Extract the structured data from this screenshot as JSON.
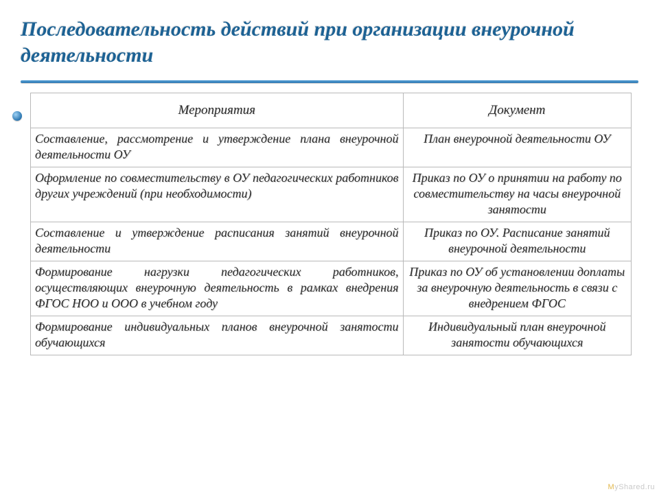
{
  "title": "Последовательность действий при организации внеурочной деятельности",
  "table": {
    "columns": [
      "Мероприятия",
      "Документ"
    ],
    "col_widths_pct": [
      62,
      38
    ],
    "rows": [
      [
        "Составление, рассмотрение и утверждение плана внеурочной деятельности ОУ",
        "План внеурочной деятельности ОУ"
      ],
      [
        "Оформление по совместительству в ОУ педагогических работников других учреждений (при необходимости)",
        "Приказ по ОУ о принятии на работу по совместительству на часы внеурочной занятости"
      ],
      [
        "Составление и утверждение расписания занятий внеурочной деятельности",
        "Приказ по ОУ. Расписание занятий внеурочной деятельности"
      ],
      [
        "Формирование нагрузки педагогических работников, осуществляющих внеурочную деятельность в рамках внедрения ФГОС НОО и ООО в учебном году",
        "Приказ по ОУ об установлении доплаты за внеурочную деятельность в связи с внедрением ФГОС"
      ],
      [
        "Формирование индивидуальных планов внеурочной занятости обучающихся",
        "Индивидуальный план внеурочной занятости обучающихся"
      ]
    ],
    "header_fontsize": 19,
    "cell_fontsize": 18,
    "border_color": "#b8b8b8",
    "text_color": "#2a2a2a",
    "font_style": "italic"
  },
  "colors": {
    "title_color": "#1d6294",
    "accent_gradient_start": "#5aa3d8",
    "accent_gradient_end": "#2a75b0",
    "background": "#ffffff"
  },
  "watermark": {
    "prefix": "M",
    "rest": "yShared.ru"
  }
}
